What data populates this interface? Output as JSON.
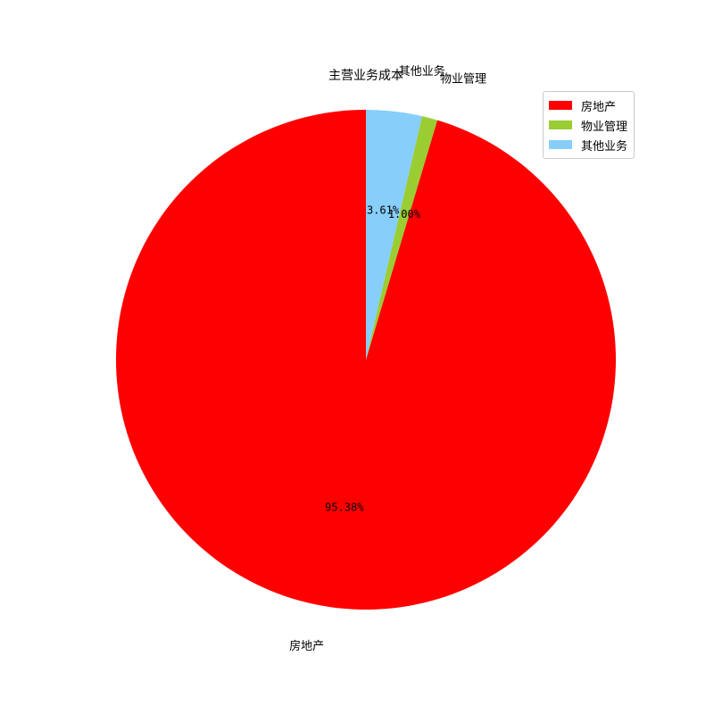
{
  "chart_data": {
    "type": "pie",
    "title": "主营业务成本",
    "categories": [
      "房地产",
      "物业管理",
      "其他业务"
    ],
    "values": [
      95.38,
      1.0,
      3.61
    ],
    "percent_labels": [
      "95.38%",
      "1.00%",
      "3.61%"
    ],
    "colors": [
      "#ff0000",
      "#9acd32",
      "#87cefa"
    ],
    "start_angle": "90 degrees, drawn clockwise",
    "legend_position": "top-right"
  }
}
